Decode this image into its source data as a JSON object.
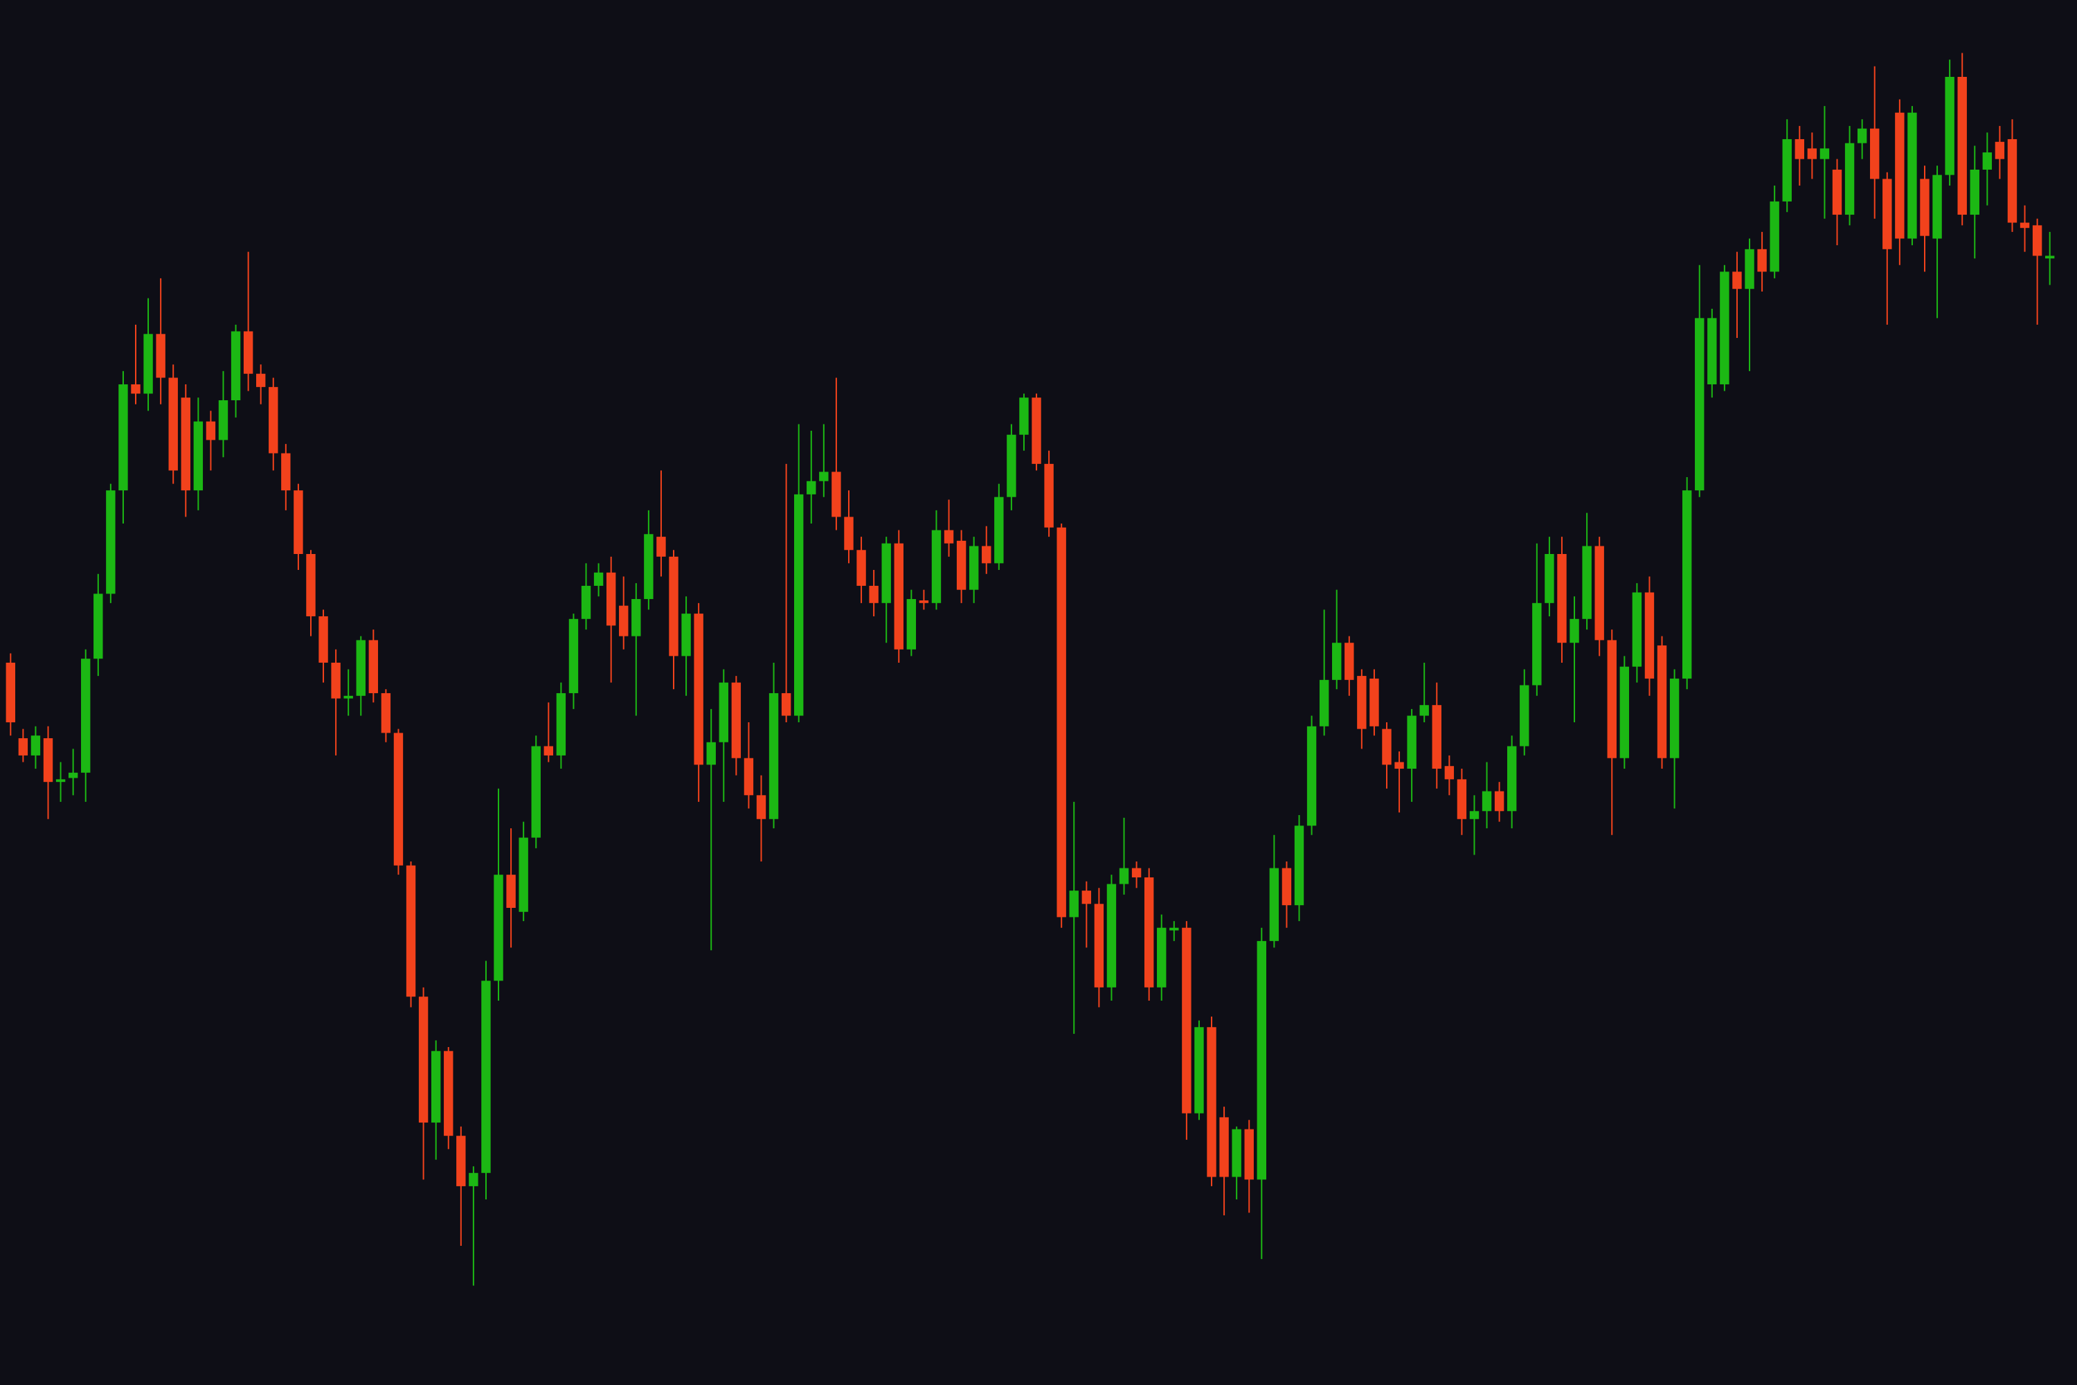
{
  "chart_data": {
    "type": "candlestick",
    "up_color": "#1cb814",
    "down_color": "#f2421c",
    "background": "#0e0e16",
    "ylim": [
      0,
      1045
    ],
    "open": [
      545,
      488,
      475,
      488,
      455,
      458,
      462,
      548,
      597,
      675,
      755,
      748,
      793,
      760,
      745,
      675,
      727,
      713,
      743,
      795,
      763,
      753,
      703,
      675,
      627,
      580,
      545,
      518,
      520,
      562,
      522,
      492,
      392,
      293,
      198,
      252,
      188,
      150,
      160,
      305,
      385,
      357,
      413,
      482,
      475,
      522,
      578,
      603,
      613,
      588,
      565,
      593,
      640,
      625,
      550,
      582,
      468,
      485,
      530,
      473,
      445,
      427,
      522,
      505,
      672,
      682,
      689,
      655,
      630,
      603,
      590,
      635,
      555,
      592,
      590,
      645,
      637,
      600,
      633,
      620,
      670,
      717,
      745,
      695,
      647,
      353,
      373,
      363,
      300,
      378,
      390,
      383,
      300,
      343,
      345,
      205,
      270,
      202,
      157,
      193,
      155,
      335,
      390,
      362,
      422,
      497,
      532,
      560,
      535,
      533,
      495,
      470,
      465,
      505,
      513,
      467,
      457,
      427,
      433,
      448,
      433,
      482,
      528,
      590,
      627,
      560,
      578,
      633,
      562,
      473,
      542,
      598,
      558,
      473,
      533,
      675,
      755,
      755,
      840,
      827,
      857,
      840,
      893,
      940,
      933,
      925,
      917,
      883,
      937,
      948,
      910,
      960,
      865,
      910,
      865,
      913,
      987,
      883,
      917,
      938,
      940,
      877,
      875,
      850
    ],
    "close": [
      500,
      475,
      490,
      455,
      457,
      462,
      548,
      597,
      675,
      755,
      748,
      793,
      760,
      690,
      675,
      727,
      713,
      743,
      795,
      763,
      753,
      703,
      675,
      627,
      580,
      545,
      518,
      520,
      562,
      522,
      492,
      392,
      293,
      198,
      252,
      188,
      150,
      160,
      305,
      385,
      360,
      413,
      482,
      475,
      522,
      578,
      603,
      613,
      573,
      565,
      593,
      642,
      625,
      550,
      582,
      468,
      485,
      530,
      473,
      445,
      427,
      522,
      505,
      672,
      682,
      689,
      655,
      630,
      603,
      590,
      635,
      555,
      593,
      590,
      645,
      635,
      600,
      633,
      620,
      670,
      717,
      745,
      695,
      647,
      353,
      373,
      363,
      300,
      378,
      390,
      383,
      300,
      345,
      345,
      205,
      270,
      157,
      157,
      193,
      155,
      335,
      390,
      362,
      422,
      497,
      532,
      560,
      532,
      495,
      497,
      468,
      465,
      505,
      513,
      465,
      457,
      427,
      433,
      448,
      433,
      482,
      528,
      590,
      627,
      560,
      578,
      633,
      562,
      473,
      542,
      598,
      533,
      473,
      533,
      675,
      805,
      805,
      840,
      827,
      857,
      840,
      893,
      940,
      925,
      925,
      933,
      883,
      937,
      948,
      910,
      857,
      865,
      960,
      867,
      913,
      987,
      883,
      917,
      930,
      925,
      877,
      873,
      852,
      852
    ],
    "high": [
      552,
      495,
      497,
      497,
      470,
      480,
      555,
      612,
      680,
      765,
      800,
      820,
      835,
      770,
      755,
      745,
      735,
      765,
      800,
      855,
      770,
      760,
      710,
      680,
      630,
      585,
      555,
      540,
      565,
      570,
      525,
      495,
      395,
      300,
      260,
      255,
      195,
      165,
      320,
      450,
      420,
      425,
      490,
      515,
      530,
      582,
      620,
      620,
      625,
      610,
      605,
      660,
      690,
      630,
      595,
      590,
      510,
      540,
      535,
      500,
      460,
      545,
      695,
      725,
      720,
      725,
      760,
      675,
      640,
      615,
      640,
      645,
      600,
      600,
      660,
      668,
      645,
      640,
      648,
      680,
      725,
      748,
      748,
      705,
      650,
      440,
      380,
      375,
      385,
      428,
      395,
      390,
      355,
      350,
      350,
      275,
      278,
      210,
      195,
      200,
      345,
      415,
      395,
      430,
      505,
      585,
      600,
      565,
      540,
      540,
      500,
      478,
      510,
      545,
      530,
      475,
      465,
      445,
      470,
      455,
      490,
      540,
      635,
      640,
      640,
      595,
      658,
      640,
      570,
      550,
      605,
      610,
      565,
      540,
      685,
      845,
      812,
      845,
      855,
      865,
      870,
      905,
      955,
      950,
      945,
      965,
      925,
      950,
      955,
      995,
      915,
      970,
      965,
      920,
      920,
      1000,
      1005,
      935,
      945,
      950,
      955,
      890,
      880,
      870
    ],
    "low": [
      490,
      470,
      465,
      427,
      440,
      445,
      440,
      535,
      590,
      650,
      740,
      735,
      740,
      680,
      655,
      660,
      690,
      700,
      730,
      750,
      740,
      690,
      660,
      615,
      565,
      530,
      475,
      505,
      505,
      515,
      485,
      385,
      285,
      155,
      170,
      178,
      105,
      75,
      140,
      290,
      330,
      350,
      405,
      470,
      465,
      510,
      570,
      595,
      530,
      555,
      505,
      585,
      610,
      525,
      520,
      440,
      328,
      440,
      460,
      435,
      395,
      420,
      500,
      500,
      650,
      670,
      645,
      620,
      590,
      580,
      560,
      545,
      550,
      585,
      585,
      625,
      590,
      590,
      612,
      615,
      660,
      705,
      690,
      640,
      345,
      265,
      330,
      285,
      290,
      370,
      375,
      290,
      290,
      335,
      185,
      200,
      150,
      128,
      140,
      130,
      95,
      330,
      345,
      350,
      415,
      490,
      525,
      520,
      480,
      490,
      450,
      432,
      440,
      500,
      450,
      445,
      415,
      400,
      420,
      425,
      420,
      475,
      520,
      580,
      545,
      500,
      570,
      550,
      415,
      465,
      530,
      520,
      465,
      435,
      525,
      670,
      745,
      750,
      790,
      765,
      825,
      835,
      885,
      905,
      910,
      880,
      860,
      875,
      925,
      880,
      800,
      845,
      860,
      840,
      805,
      905,
      875,
      850,
      890,
      910,
      870,
      855,
      800,
      830
    ]
  }
}
